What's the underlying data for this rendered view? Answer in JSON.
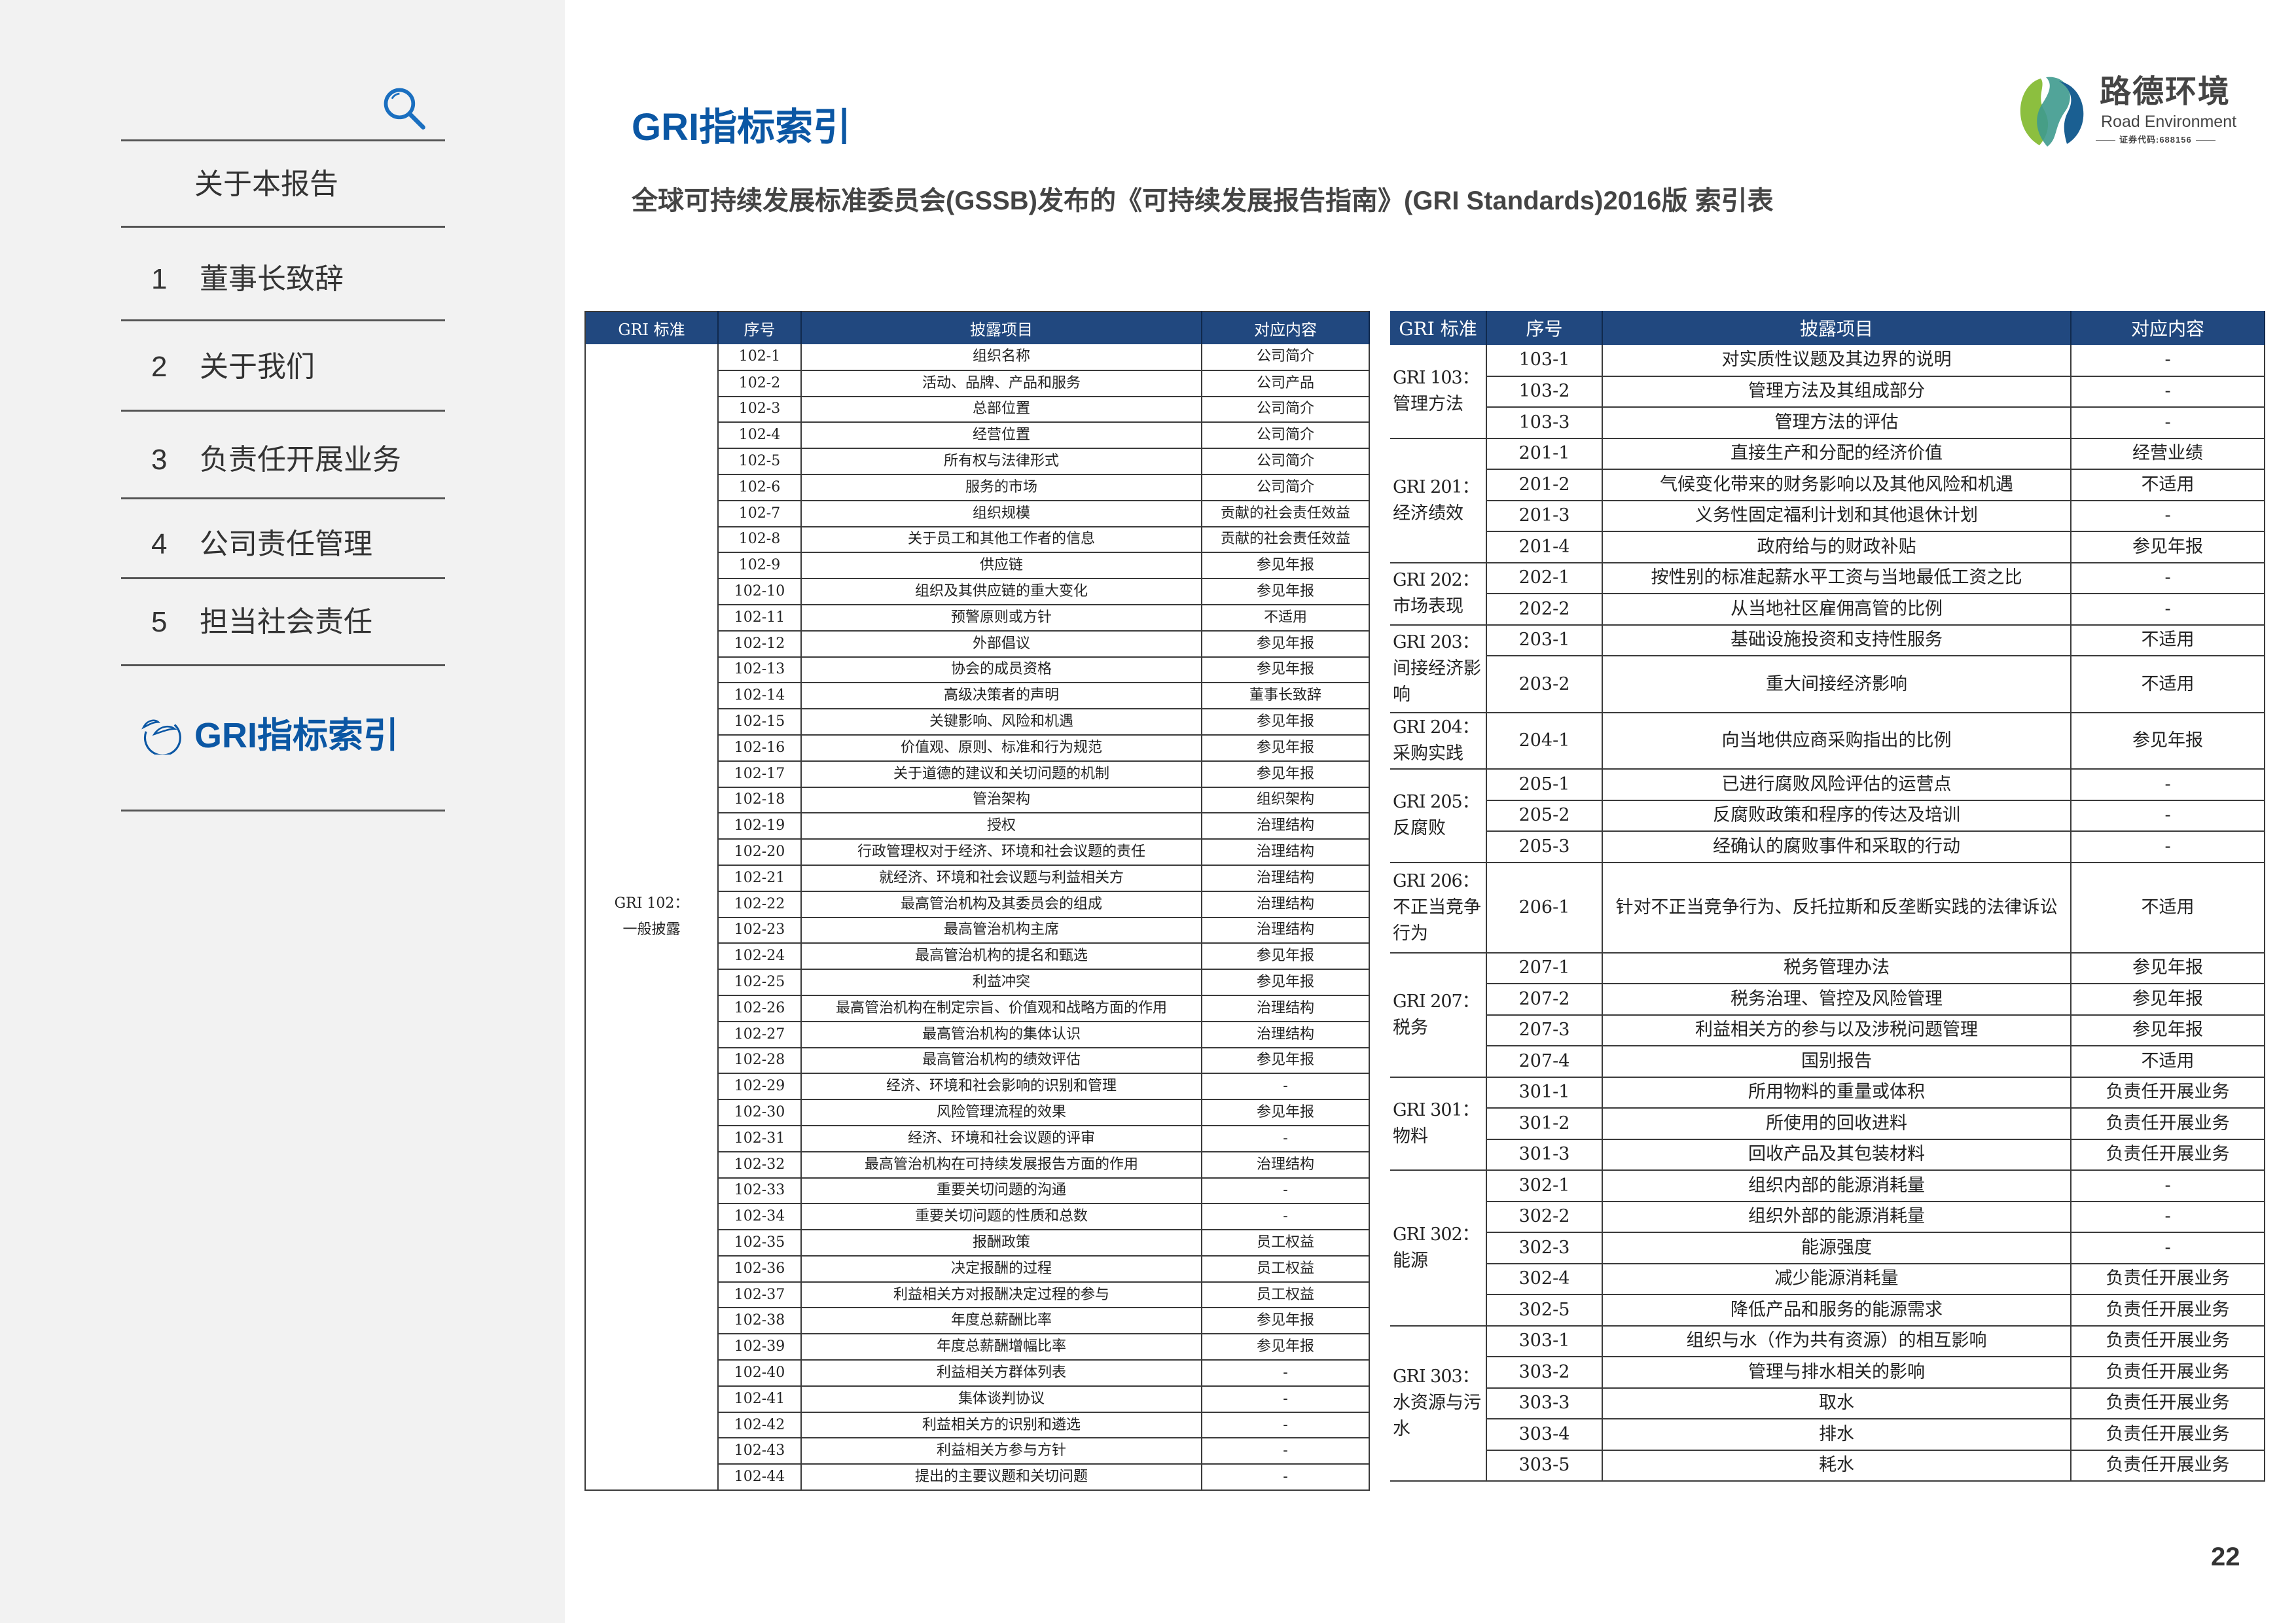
{
  "sidebar": {
    "search_icon": "search-icon",
    "items": [
      {
        "num": "",
        "label": "关于本报告"
      },
      {
        "num": "1",
        "label": "董事长致辞"
      },
      {
        "num": "2",
        "label": "关于我们"
      },
      {
        "num": "3",
        "label": "负责任开展业务"
      },
      {
        "num": "4",
        "label": "公司责任管理"
      },
      {
        "num": "5",
        "label": "担当社会责任"
      },
      {
        "num": "",
        "label": "GRI指标索引",
        "active": true,
        "icon": "leaf-swirl-icon"
      }
    ],
    "active_color": "#0b57a4"
  },
  "header": {
    "title": "GRI指标索引",
    "subtitle": "全球可持续发展标准委员会(GSSB)发布的《可持续发展报告指南》(GRI Standards)2016版 索引表"
  },
  "logo": {
    "cn": "路德环境",
    "en": "Road Environment",
    "code": "证券代码:688156"
  },
  "page_number": "22",
  "colors": {
    "header_bg": "#21487f",
    "title": "#0b57a4",
    "sidebar_bg": "#f2f2f2"
  },
  "columns": [
    "GRI 标准",
    "序号",
    "披露项目",
    "对应内容"
  ],
  "left_table": {
    "group_code": "GRI 102：",
    "group_name": "一般披露",
    "rows": [
      [
        "102-1",
        "组织名称",
        "公司简介"
      ],
      [
        "102-2",
        "活动、品牌、产品和服务",
        "公司产品"
      ],
      [
        "102-3",
        "总部位置",
        "公司简介"
      ],
      [
        "102-4",
        "经营位置",
        "公司简介"
      ],
      [
        "102-5",
        "所有权与法律形式",
        "公司简介"
      ],
      [
        "102-6",
        "服务的市场",
        "公司简介"
      ],
      [
        "102-7",
        "组织规模",
        "贡献的社会责任效益"
      ],
      [
        "102-8",
        "关于员工和其他工作者的信息",
        "贡献的社会责任效益"
      ],
      [
        "102-9",
        "供应链",
        "参见年报"
      ],
      [
        "102-10",
        "组织及其供应链的重大变化",
        "参见年报"
      ],
      [
        "102-11",
        "预警原则或方针",
        "不适用"
      ],
      [
        "102-12",
        "外部倡议",
        "参见年报"
      ],
      [
        "102-13",
        "协会的成员资格",
        "参见年报"
      ],
      [
        "102-14",
        "高级决策者的声明",
        "董事长致辞"
      ],
      [
        "102-15",
        "关键影响、风险和机遇",
        "参见年报"
      ],
      [
        "102-16",
        "价值观、原则、标准和行为规范",
        "参见年报"
      ],
      [
        "102-17",
        "关于道德的建议和关切问题的机制",
        "参见年报"
      ],
      [
        "102-18",
        "管治架构",
        "组织架构"
      ],
      [
        "102-19",
        "授权",
        "治理结构"
      ],
      [
        "102-20",
        "行政管理权对于经济、环境和社会议题的责任",
        "治理结构"
      ],
      [
        "102-21",
        "就经济、环境和社会议题与利益相关方",
        "治理结构"
      ],
      [
        "102-22",
        "最高管治机构及其委员会的组成",
        "治理结构"
      ],
      [
        "102-23",
        "最高管治机构主席",
        "治理结构"
      ],
      [
        "102-24",
        "最高管治机构的提名和甄选",
        "参见年报"
      ],
      [
        "102-25",
        "利益冲突",
        "参见年报"
      ],
      [
        "102-26",
        "最高管治机构在制定宗旨、价值观和战略方面的作用",
        "治理结构"
      ],
      [
        "102-27",
        "最高管治机构的集体认识",
        "治理结构"
      ],
      [
        "102-28",
        "最高管治机构的绩效评估",
        "参见年报"
      ],
      [
        "102-29",
        "经济、环境和社会影响的识别和管理",
        "-"
      ],
      [
        "102-30",
        "风险管理流程的效果",
        "参见年报"
      ],
      [
        "102-31",
        "经济、环境和社会议题的评审",
        "-"
      ],
      [
        "102-32",
        "最高管治机构在可持续发展报告方面的作用",
        "治理结构"
      ],
      [
        "102-33",
        "重要关切问题的沟通",
        "-"
      ],
      [
        "102-34",
        "重要关切问题的性质和总数",
        "-"
      ],
      [
        "102-35",
        "报酬政策",
        "员工权益"
      ],
      [
        "102-36",
        "决定报酬的过程",
        "员工权益"
      ],
      [
        "102-37",
        "利益相关方对报酬决定过程的参与",
        "员工权益"
      ],
      [
        "102-38",
        "年度总薪酬比率",
        "参见年报"
      ],
      [
        "102-39",
        "年度总薪酬增幅比率",
        "参见年报"
      ],
      [
        "102-40",
        "利益相关方群体列表",
        "-"
      ],
      [
        "102-41",
        "集体谈判协议",
        "-"
      ],
      [
        "102-42",
        "利益相关方的识别和遴选",
        "-"
      ],
      [
        "102-43",
        "利益相关方参与方针",
        "-"
      ],
      [
        "102-44",
        "提出的主要议题和关切问题",
        "-"
      ]
    ]
  },
  "right_table": {
    "groups": [
      {
        "code": "GRI 103：",
        "name": "管理方法",
        "rows": [
          [
            "103-1",
            "对实质性议题及其边界的说明",
            "-"
          ],
          [
            "103-2",
            "管理方法及其组成部分",
            "-"
          ],
          [
            "103-3",
            "管理方法的评估",
            "-"
          ]
        ]
      },
      {
        "code": "GRI 201：",
        "name": "经济绩效",
        "rows": [
          [
            "201-1",
            "直接生产和分配的经济价值",
            "经营业绩"
          ],
          [
            "201-2",
            "气候变化带来的财务影响以及其他风险和机遇",
            "不适用"
          ],
          [
            "201-3",
            "义务性固定福利计划和其他退休计划",
            "-"
          ],
          [
            "201-4",
            "政府给与的财政补贴",
            "参见年报"
          ]
        ]
      },
      {
        "code": "GRI 202：",
        "name": "市场表现",
        "rows": [
          [
            "202-1",
            "按性别的标准起薪水平工资与当地最低工资之比",
            "-"
          ],
          [
            "202-2",
            "从当地社区雇佣高管的比例",
            "-"
          ]
        ]
      },
      {
        "code": "GRI 203：",
        "name": "间接经济影响",
        "rows": [
          [
            "203-1",
            "基础设施投资和支持性服务",
            "不适用"
          ],
          [
            "203-2",
            "重大间接经济影响",
            "不适用"
          ]
        ]
      },
      {
        "code": "GRI 204：",
        "name": "采购实践",
        "rows": [
          [
            "204-1",
            "向当地供应商采购指出的比例",
            "参见年报"
          ]
        ]
      },
      {
        "code": "GRI 205：",
        "name": "反腐败",
        "rows": [
          [
            "205-1",
            "已进行腐败风险评估的运营点",
            "-"
          ],
          [
            "205-2",
            "反腐败政策和程序的传达及培训",
            "-"
          ],
          [
            "205-3",
            "经确认的腐败事件和采取的行动",
            "-"
          ]
        ]
      },
      {
        "code": "GRI 206：",
        "name": "不正当竞争行为",
        "rows": [
          [
            "206-1",
            "针对不正当竞争行为、反托拉斯和反垄断实践的法律诉讼",
            "不适用"
          ]
        ]
      },
      {
        "code": "GRI 207：",
        "name": "税务",
        "rows": [
          [
            "207-1",
            "税务管理办法",
            "参见年报"
          ],
          [
            "207-2",
            "税务治理、管控及风险管理",
            "参见年报"
          ],
          [
            "207-3",
            "利益相关方的参与以及涉税问题管理",
            "参见年报"
          ],
          [
            "207-4",
            "国别报告",
            "不适用"
          ]
        ]
      },
      {
        "code": "GRI 301：",
        "name": "物料",
        "rows": [
          [
            "301-1",
            "所用物料的重量或体积",
            "负责任开展业务"
          ],
          [
            "301-2",
            "所使用的回收进料",
            "负责任开展业务"
          ],
          [
            "301-3",
            "回收产品及其包装材料",
            "负责任开展业务"
          ]
        ]
      },
      {
        "code": "GRI 302：",
        "name": "能源",
        "rows": [
          [
            "302-1",
            "组织内部的能源消耗量",
            "-"
          ],
          [
            "302-2",
            "组织外部的能源消耗量",
            "-"
          ],
          [
            "302-3",
            "能源强度",
            "-"
          ],
          [
            "302-4",
            "减少能源消耗量",
            "负责任开展业务"
          ],
          [
            "302-5",
            "降低产品和服务的能源需求",
            "负责任开展业务"
          ]
        ]
      },
      {
        "code": "GRI 303：",
        "name": "水资源与污水",
        "rows": [
          [
            "303-1",
            "组织与水（作为共有资源）的相互影响",
            "负责任开展业务"
          ],
          [
            "303-2",
            "管理与排水相关的影响",
            "负责任开展业务"
          ],
          [
            "303-3",
            "取水",
            "负责任开展业务"
          ],
          [
            "303-4",
            "排水",
            "负责任开展业务"
          ],
          [
            "303-5",
            "耗水",
            "负责任开展业务"
          ]
        ]
      }
    ]
  }
}
